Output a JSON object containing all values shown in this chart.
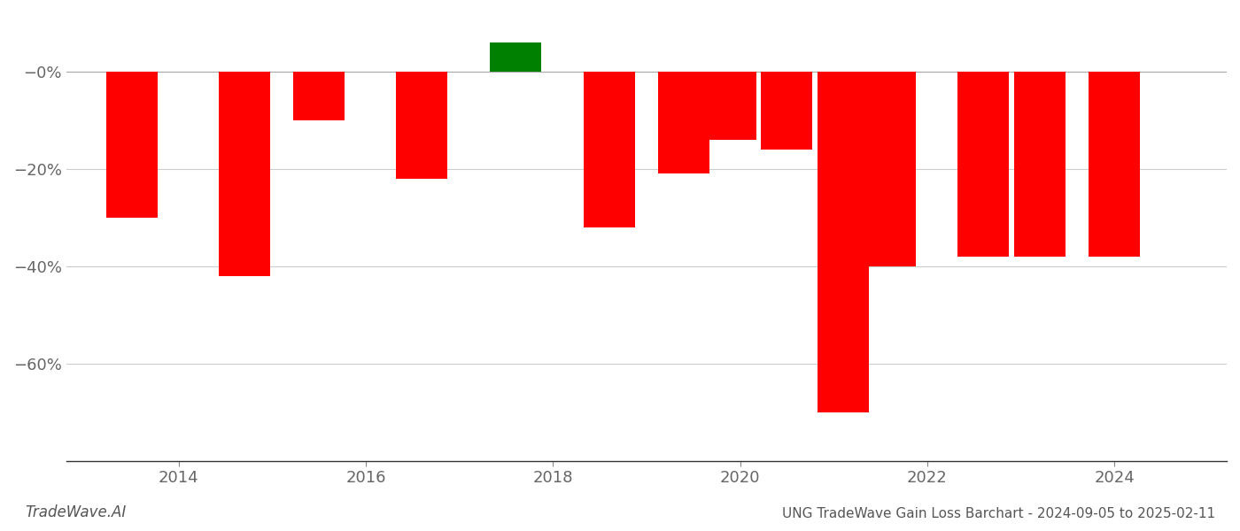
{
  "years": [
    2013.5,
    2014.7,
    2015.5,
    2016.6,
    2017.6,
    2018.6,
    2019.4,
    2019.9,
    2020.5,
    2021.1,
    2021.6,
    2022.6,
    2023.2,
    2024.0
  ],
  "values": [
    -0.3,
    -0.42,
    -0.1,
    -0.22,
    0.06,
    -0.32,
    -0.21,
    -0.14,
    -0.16,
    -0.7,
    -0.4,
    -0.38,
    -0.38,
    -0.38
  ],
  "colors": [
    "#ff0000",
    "#ff0000",
    "#ff0000",
    "#ff0000",
    "#008000",
    "#ff0000",
    "#ff0000",
    "#ff0000",
    "#ff0000",
    "#ff0000",
    "#ff0000",
    "#ff0000",
    "#ff0000",
    "#ff0000"
  ],
  "title": "UNG TradeWave Gain Loss Barchart - 2024-09-05 to 2025-02-11",
  "watermark": "TradeWave.AI",
  "background_color": "#ffffff",
  "grid_color": "#cccccc",
  "bar_width": 0.55,
  "ylim_min": -0.8,
  "ylim_max": 0.12,
  "xlim_min": 2012.8,
  "xlim_max": 2025.2,
  "xticks": [
    2014,
    2016,
    2018,
    2020,
    2022,
    2024
  ],
  "yticks": [
    0.0,
    -0.2,
    -0.4,
    -0.6
  ],
  "ytick_labels": [
    "−0%",
    "−20%",
    "−40%",
    "−60%"
  ]
}
